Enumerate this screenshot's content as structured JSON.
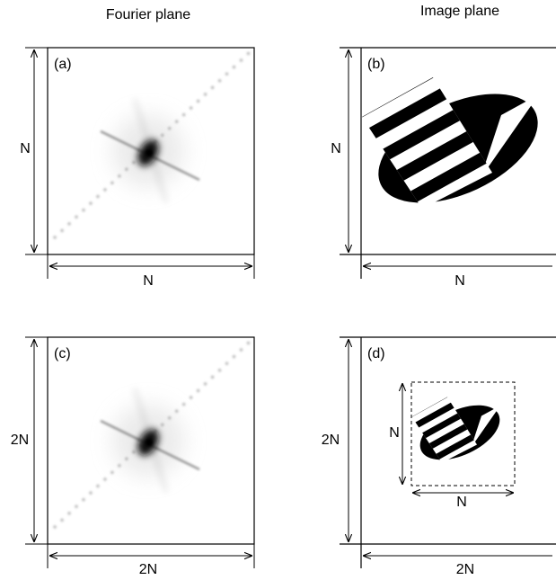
{
  "column_titles": [
    "Fourier plane",
    "Image plane"
  ],
  "panels": [
    {
      "label": "(a)",
      "height_label": "N",
      "width_label": "N"
    },
    {
      "label": "(b)",
      "height_label": "N",
      "width_label": "N"
    },
    {
      "label": "(c)",
      "height_label": "2N",
      "width_label": "2N"
    },
    {
      "label": "(d)",
      "height_label": "2N",
      "width_label": "2N",
      "inner_height_label": "N",
      "inner_width_label": "N"
    }
  ]
}
